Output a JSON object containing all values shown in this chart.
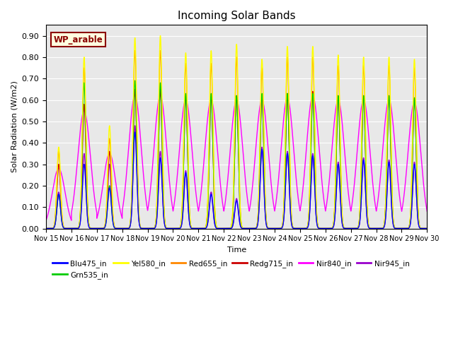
{
  "title": "Incoming Solar Bands",
  "xlabel": "Time",
  "ylabel": "Solar Radiation (W/m2)",
  "ylim": [
    0,
    0.95
  ],
  "yticks": [
    0.0,
    0.1,
    0.2,
    0.3,
    0.4,
    0.5,
    0.6,
    0.7,
    0.8,
    0.9
  ],
  "xtick_labels": [
    "Nov 15",
    "Nov 16",
    "Nov 17",
    "Nov 18",
    "Nov 19",
    "Nov 20",
    "Nov 21",
    "Nov 22",
    "Nov 23",
    "Nov 24",
    "Nov 25",
    "Nov 26",
    "Nov 27",
    "Nov 28",
    "Nov 29",
    "Nov 30"
  ],
  "wp_label": "WP_arable",
  "series": {
    "Blu475_in": {
      "color": "#0000ff",
      "lw": 1.0
    },
    "Grn535_in": {
      "color": "#00cc00",
      "lw": 1.0
    },
    "Yel580_in": {
      "color": "#ffff00",
      "lw": 1.0
    },
    "Red655_in": {
      "color": "#ff8800",
      "lw": 1.0
    },
    "Redg715_in": {
      "color": "#cc0000",
      "lw": 1.0
    },
    "Nir840_in": {
      "color": "#ff00ff",
      "lw": 1.0
    },
    "Nir945_in": {
      "color": "#9900cc",
      "lw": 1.0
    }
  },
  "peaks": [
    {
      "yel": 0.38,
      "red": 0.36,
      "redg": 0.3,
      "nir840": 0.28,
      "nir945": 0.17,
      "blu": 0.16,
      "grn": 0.16
    },
    {
      "yel": 0.8,
      "red": 0.75,
      "redg": 0.58,
      "nir840": 0.55,
      "nir945": 0.35,
      "blu": 0.3,
      "grn": 0.68
    },
    {
      "yel": 0.48,
      "red": 0.42,
      "redg": 0.36,
      "nir840": 0.35,
      "nir945": 0.3,
      "blu": 0.19,
      "grn": 0.2
    },
    {
      "yel": 0.89,
      "red": 0.83,
      "redg": 0.65,
      "nir840": 0.62,
      "nir945": 0.48,
      "blu": 0.45,
      "grn": 0.69
    },
    {
      "yel": 0.9,
      "red": 0.83,
      "redg": 0.65,
      "nir840": 0.62,
      "nir945": 0.36,
      "blu": 0.33,
      "grn": 0.68
    },
    {
      "yel": 0.82,
      "red": 0.77,
      "redg": 0.62,
      "nir840": 0.6,
      "nir945": 0.27,
      "blu": 0.26,
      "grn": 0.63
    },
    {
      "yel": 0.83,
      "red": 0.77,
      "redg": 0.62,
      "nir840": 0.6,
      "nir945": 0.17,
      "blu": 0.16,
      "grn": 0.63
    },
    {
      "yel": 0.86,
      "red": 0.8,
      "redg": 0.62,
      "nir840": 0.6,
      "nir945": 0.14,
      "blu": 0.13,
      "grn": 0.62
    },
    {
      "yel": 0.79,
      "red": 0.75,
      "redg": 0.62,
      "nir840": 0.6,
      "nir945": 0.38,
      "blu": 0.37,
      "grn": 0.63
    },
    {
      "yel": 0.85,
      "red": 0.8,
      "redg": 0.63,
      "nir840": 0.61,
      "nir945": 0.36,
      "blu": 0.35,
      "grn": 0.63
    },
    {
      "yel": 0.85,
      "red": 0.8,
      "redg": 0.64,
      "nir840": 0.62,
      "nir945": 0.35,
      "blu": 0.34,
      "grn": 0.63
    },
    {
      "yel": 0.81,
      "red": 0.76,
      "redg": 0.62,
      "nir840": 0.6,
      "nir945": 0.31,
      "blu": 0.3,
      "grn": 0.62
    },
    {
      "yel": 0.8,
      "red": 0.76,
      "redg": 0.62,
      "nir840": 0.6,
      "nir945": 0.33,
      "blu": 0.32,
      "grn": 0.62
    },
    {
      "yel": 0.8,
      "red": 0.76,
      "redg": 0.62,
      "nir840": 0.6,
      "nir945": 0.32,
      "blu": 0.31,
      "grn": 0.62
    },
    {
      "yel": 0.79,
      "red": 0.75,
      "redg": 0.61,
      "nir840": 0.59,
      "nir945": 0.31,
      "blu": 0.3,
      "grn": 0.61
    }
  ],
  "plot_bg_color": "#e8e8e8",
  "fig_bg_color": "#ffffff",
  "grid_color": "#ffffff"
}
